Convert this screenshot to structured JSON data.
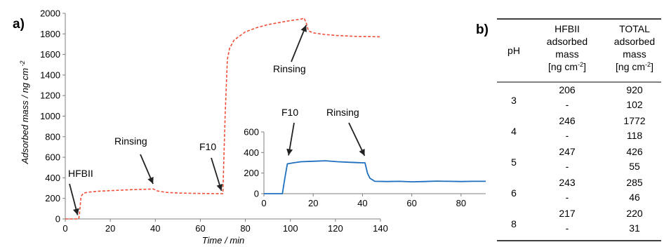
{
  "panel_a_label": "a)",
  "panel_b_label": "b)",
  "chart_data": [
    {
      "type": "line",
      "xlabel": "Time / min",
      "ylabel": "Adsorbed mass / ng cm",
      "ylabel_sup": "-2",
      "xlim": [
        0,
        140
      ],
      "ylim": [
        0,
        2000
      ],
      "xticks": [
        0,
        20,
        40,
        60,
        80,
        100,
        120,
        140
      ],
      "yticks": [
        0,
        200,
        400,
        600,
        800,
        1000,
        1200,
        1400,
        1600,
        1800,
        2000
      ],
      "color": "#f04e37",
      "series": [
        {
          "x": [
            0,
            4,
            6,
            6.3,
            7,
            8,
            10,
            15,
            20,
            30,
            38,
            39,
            41,
            45,
            50,
            60,
            70,
            71,
            72,
            73,
            75,
            80,
            85,
            90,
            95,
            100,
            105,
            106,
            107,
            108,
            110,
            115,
            120,
            130,
            140
          ],
          "y": [
            0,
            0,
            0,
            50,
            220,
            250,
            260,
            270,
            275,
            285,
            290,
            292,
            272,
            258,
            252,
            248,
            246,
            1000,
            1550,
            1660,
            1740,
            1820,
            1860,
            1890,
            1910,
            1930,
            1945,
            1955,
            1910,
            1830,
            1810,
            1795,
            1785,
            1775,
            1772
          ]
        }
      ],
      "annotations": [
        {
          "text": "HFBII",
          "x": 5.5,
          "y": 10
        },
        {
          "text": "Rinsing",
          "x": 39,
          "y": 300
        },
        {
          "text": "F10",
          "x": 70,
          "y": 260
        },
        {
          "text": "Rinsing",
          "x": 107,
          "y": 1940
        }
      ]
    },
    {
      "type": "line",
      "xlim": [
        0,
        90
      ],
      "ylim": [
        0,
        600
      ],
      "xticks": [
        0,
        20,
        40,
        60,
        80
      ],
      "yticks": [
        0,
        200,
        400,
        600
      ],
      "color": "#1f6fbf",
      "series": [
        {
          "x": [
            0,
            5,
            7.5,
            8.5,
            9.5,
            12,
            15,
            20,
            25,
            30,
            35,
            40,
            41,
            42,
            43,
            45,
            50,
            55,
            60,
            65,
            70,
            75,
            80,
            85,
            90
          ],
          "y": [
            0,
            0,
            0,
            150,
            290,
            300,
            310,
            315,
            320,
            310,
            305,
            300,
            300,
            200,
            150,
            120,
            118,
            120,
            115,
            118,
            122,
            120,
            118,
            120,
            120
          ]
        }
      ],
      "annotations": [
        {
          "text": "F10",
          "x": 10,
          "y": 290
        },
        {
          "text": "Rinsing",
          "x": 42,
          "y": 300
        }
      ]
    }
  ],
  "table": {
    "headers": [
      {
        "lines": [
          "pH"
        ]
      },
      {
        "lines": [
          "HFBII",
          "adsorbed",
          "mass",
          "[ng cm"
        ],
        "sup": "-2",
        "tail": "]"
      },
      {
        "lines": [
          "TOTAL",
          "adsorbed",
          "mass",
          "[ng cm"
        ],
        "sup": "-2",
        "tail": "]"
      }
    ],
    "rows": [
      {
        "ph": "3",
        "hfbii": [
          "206",
          "-"
        ],
        "total": [
          "920",
          "102"
        ]
      },
      {
        "ph": "4",
        "hfbii": [
          "246",
          "-"
        ],
        "total": [
          "1772",
          "118"
        ]
      },
      {
        "ph": "5",
        "hfbii": [
          "247",
          "-"
        ],
        "total": [
          "426",
          "55"
        ]
      },
      {
        "ph": "6",
        "hfbii": [
          "243",
          "-"
        ],
        "total": [
          "285",
          "46"
        ]
      },
      {
        "ph": "8",
        "hfbii": [
          "217",
          "-"
        ],
        "total": [
          "220",
          "31"
        ]
      }
    ]
  }
}
